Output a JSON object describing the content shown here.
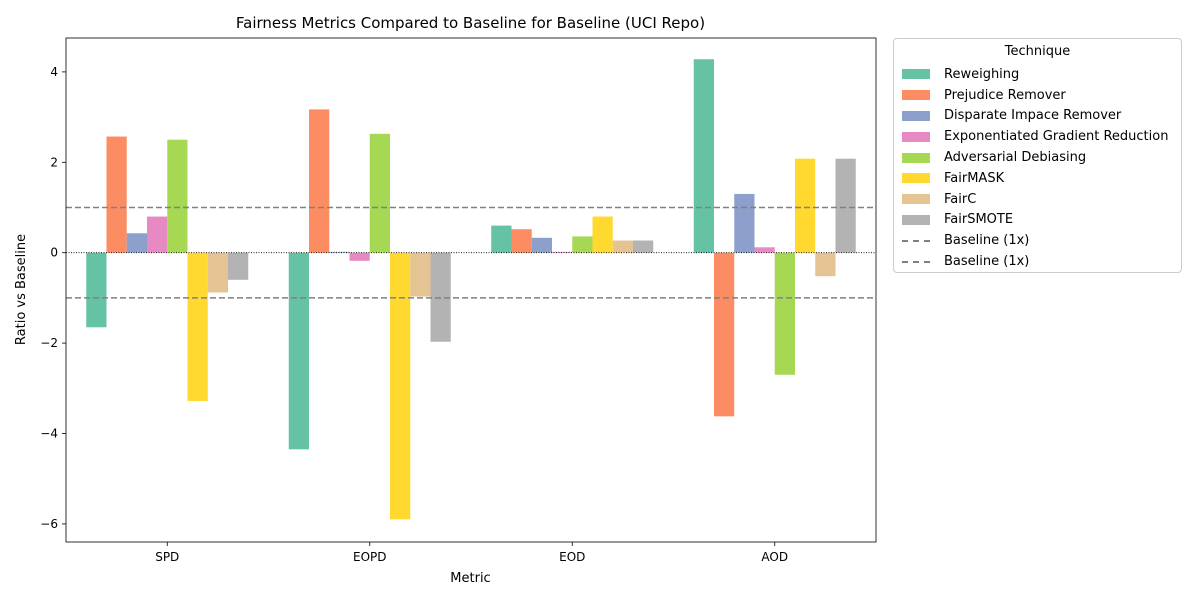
{
  "chart_data": {
    "type": "bar",
    "title": "Fairness Metrics Compared to Baseline for Baseline (UCI Repo)",
    "xlabel": "Metric",
    "ylabel": "Ratio vs Baseline",
    "categories": [
      "SPD",
      "EOPD",
      "EOD",
      "AOD"
    ],
    "ylim": [
      -6.4,
      4.75
    ],
    "yticks": [
      -6,
      -4,
      -2,
      0,
      2,
      4
    ],
    "ytick_labels": [
      "−6",
      "−4",
      "−2",
      "0",
      "2",
      "4"
    ],
    "grid": false,
    "legend_title": "Technique",
    "legend_position": "outside-right-top",
    "series": [
      {
        "name": "Reweighing",
        "color": "#66c2a5",
        "values": [
          -1.65,
          -4.35,
          0.6,
          4.28
        ]
      },
      {
        "name": "Prejudice Remover",
        "color": "#fc8d62",
        "values": [
          2.57,
          3.17,
          0.52,
          -3.62
        ]
      },
      {
        "name": "Disparate Impace Remover",
        "color": "#8da0cb",
        "values": [
          0.43,
          0.02,
          0.33,
          1.3
        ]
      },
      {
        "name": "Exponentiated Gradient Reduction",
        "color": "#e78ac3",
        "values": [
          0.8,
          -0.18,
          0.02,
          0.12
        ]
      },
      {
        "name": "Adversarial Debiasing",
        "color": "#a6d854",
        "values": [
          2.5,
          2.63,
          0.36,
          -2.7
        ]
      },
      {
        "name": "FairMASK",
        "color": "#ffd92f",
        "values": [
          -3.28,
          -5.9,
          0.8,
          2.08
        ]
      },
      {
        "name": "FairC",
        "color": "#e5c494",
        "values": [
          -0.88,
          -0.97,
          0.27,
          -0.52
        ]
      },
      {
        "name": "FairSMOTE",
        "color": "#b3b3b3",
        "values": [
          -0.6,
          -1.97,
          0.27,
          2.08
        ]
      }
    ],
    "reference_lines": [
      {
        "name": "Baseline (1x)",
        "y": 1,
        "style": "dashed",
        "color": "#808080"
      },
      {
        "name": "Baseline (1x)",
        "y": -1,
        "style": "dashed",
        "color": "#808080"
      }
    ],
    "zero_line": {
      "y": 0,
      "style": "dotted",
      "color": "#000000"
    }
  }
}
